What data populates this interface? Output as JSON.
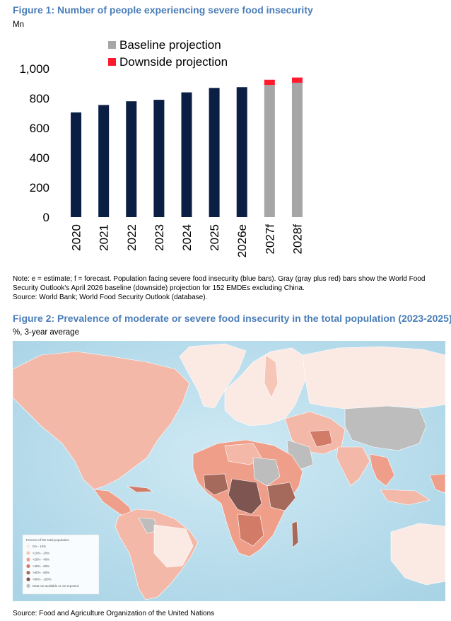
{
  "figure1": {
    "title": "Figure 1: Number of people experiencing severe food insecurity",
    "unit": "Mn",
    "note_lines": [
      "Note: e = estimate; f = forecast. Population facing severe food insecurity (blue bars). Gray (gray plus red) bars show the World Food",
      "Security Outlook's April 2026 baseline (downside) projection for 152 EMDEs excluding China.",
      "Source: World Bank; World Food Security Outlook (database)."
    ]
  },
  "chart_data": {
    "type": "bar",
    "stacked": true,
    "categories": [
      "2020",
      "2021",
      "2022",
      "2023",
      "2024",
      "2025",
      "2026e",
      "2027f",
      "2028f"
    ],
    "series": [
      {
        "values": [
          705,
          755,
          780,
          790,
          840,
          870,
          875,
          null,
          null
        ],
        "color": "#0b1f45"
      },
      {
        "name": "Baseline projection",
        "values": [
          null,
          null,
          null,
          null,
          null,
          null,
          null,
          890,
          905
        ],
        "color": "#a6a6a6"
      },
      {
        "name": "Downside projection",
        "values": [
          null,
          null,
          null,
          null,
          null,
          null,
          null,
          35,
          35
        ],
        "color": "#ff1a2e"
      }
    ],
    "ylim": [
      0,
      1000
    ],
    "yticks": [
      "0",
      "200",
      "400",
      "600",
      "800",
      "1,000"
    ],
    "grid": false,
    "legend": "top"
  },
  "figure2": {
    "title": "Figure 2: Prevalence of moderate or severe food insecurity in the total population (2023-2025)",
    "unit": "%, 3-year average",
    "legend_title": "Percent of the total population",
    "legend_items": [
      {
        "label": "0% - 10%",
        "color": "#fbe9e4"
      },
      {
        "label": ">10% - 20%",
        "color": "#f6c6b6"
      },
      {
        "label": ">20% - 40%",
        "color": "#ef9f89"
      },
      {
        "label": ">40% - 60%",
        "color": "#d27c67"
      },
      {
        "label": ">60% - 80%",
        "color": "#a66a5d"
      },
      {
        "label": ">80% - 100%",
        "color": "#7e5550"
      },
      {
        "label": "Data not available or not reported",
        "color": "#bdbdbd"
      }
    ],
    "source": "Source: Food and Agriculture Organization of the United Nations"
  }
}
